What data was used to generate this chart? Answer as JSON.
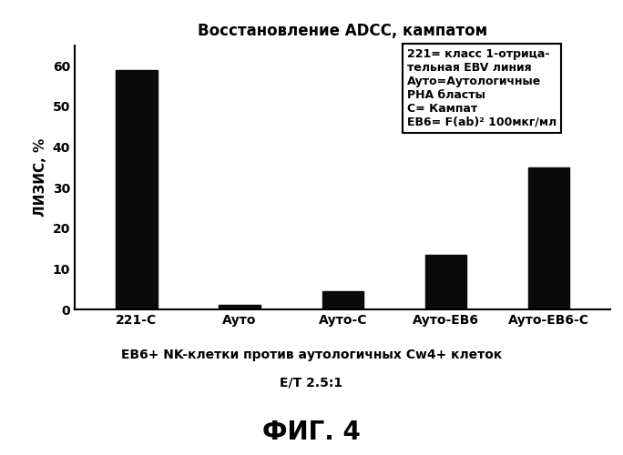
{
  "title": "Восстановление ADCC, кампатом",
  "categories": [
    "221-С",
    "Ауто",
    "Ауто-С",
    "Ауто-ЕВ6",
    "Ауто-ЕВ6-С"
  ],
  "values": [
    59.0,
    1.2,
    4.5,
    13.5,
    35.0
  ],
  "bar_color": "#0a0a0a",
  "ylabel": "ЛИЗИС, %",
  "ylim": [
    0,
    65
  ],
  "yticks": [
    0,
    10,
    20,
    30,
    40,
    50,
    60
  ],
  "background_color": "#ffffff",
  "legend_lines": [
    "221= класс 1-отрица-",
    "тельная EBV линия",
    "Ауто=Аутологичные",
    "РНА бласты",
    "С= Кампат",
    "ЕВ6= F(ab)² 100мкг/мл"
  ],
  "xlabel_line1": "ЕВ6+ NK-клетки против аутологичных Cw4+ клеток",
  "xlabel_line2": "Е/Т 2.5:1",
  "footer": "ФИГ. 4"
}
